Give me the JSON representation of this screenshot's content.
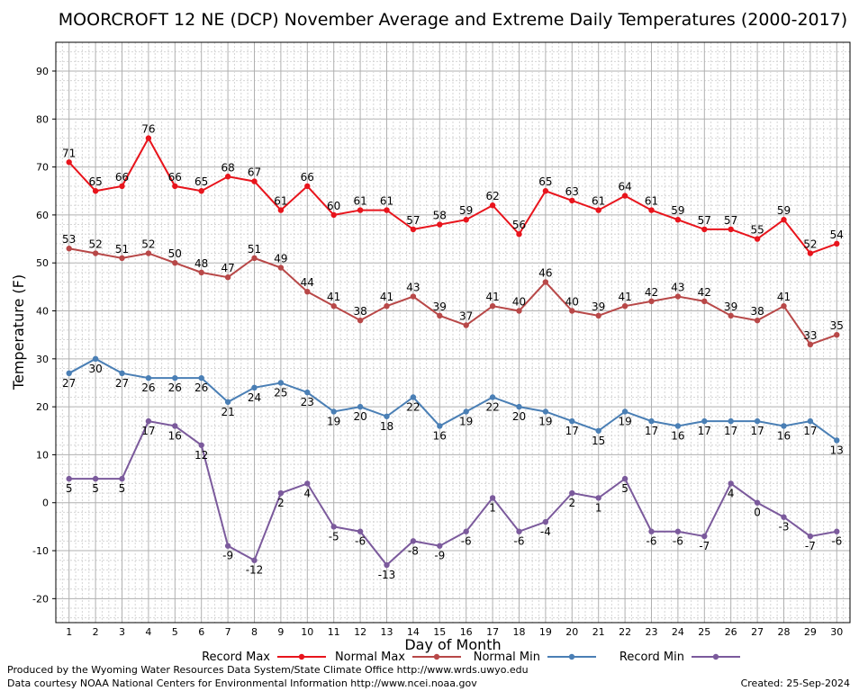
{
  "chart_data": {
    "type": "line",
    "title": "MOORCROFT 12 NE (DCP) November Average and Extreme Daily Temperatures (2000-2017)",
    "xlabel": "Day of Month",
    "ylabel": "Temperature (F)",
    "x": [
      1,
      2,
      3,
      4,
      5,
      6,
      7,
      8,
      9,
      10,
      11,
      12,
      13,
      14,
      15,
      16,
      17,
      18,
      19,
      20,
      21,
      22,
      23,
      24,
      25,
      26,
      27,
      28,
      29,
      30
    ],
    "xlim": [
      0.5,
      30.5
    ],
    "ylim": [
      -25,
      96
    ],
    "yticks": [
      -20,
      -10,
      0,
      10,
      20,
      30,
      40,
      50,
      60,
      70,
      80,
      90
    ],
    "grid": true,
    "legend_position": "bottom",
    "series": [
      {
        "name": "Record Max",
        "color": "#e8141c",
        "label_position": "above",
        "values": [
          71,
          65,
          66,
          76,
          66,
          65,
          68,
          67,
          61,
          66,
          60,
          61,
          61,
          57,
          58,
          59,
          62,
          56,
          65,
          63,
          61,
          64,
          61,
          59,
          57,
          57,
          55,
          59,
          52,
          54
        ]
      },
      {
        "name": "Normal Max",
        "color": "#b84848",
        "label_position": "above",
        "values": [
          53,
          52,
          51,
          52,
          50,
          48,
          47,
          51,
          49,
          44,
          41,
          38,
          41,
          43,
          39,
          37,
          41,
          40,
          46,
          40,
          39,
          41,
          42,
          43,
          42,
          39,
          38,
          41,
          33,
          35
        ]
      },
      {
        "name": "Normal Min",
        "color": "#4a7fb5",
        "label_position": "below",
        "values": [
          27,
          30,
          27,
          26,
          26,
          26,
          21,
          24,
          25,
          23,
          19,
          20,
          18,
          22,
          16,
          19,
          22,
          20,
          19,
          17,
          15,
          19,
          17,
          16,
          17,
          17,
          17,
          16,
          17,
          13
        ]
      },
      {
        "name": "Record Min",
        "color": "#7b5a9c",
        "label_position": "below",
        "values": [
          5,
          5,
          5,
          17,
          16,
          12,
          -9,
          -12,
          2,
          4,
          -5,
          -6,
          -13,
          -8,
          -9,
          -6,
          1,
          -6,
          -4,
          2,
          1,
          5,
          -6,
          -6,
          -7,
          4,
          0,
          -3,
          -7,
          -6
        ]
      }
    ]
  },
  "footer": {
    "line1": "Produced by the Wyoming Water Resources Data System/State Climate Office http://www.wrds.uwyo.edu",
    "line2": "Data courtesy NOAA National Centers for Environmental Information http://www.ncei.noaa.gov",
    "created": "Created:  25-Sep-2024"
  }
}
